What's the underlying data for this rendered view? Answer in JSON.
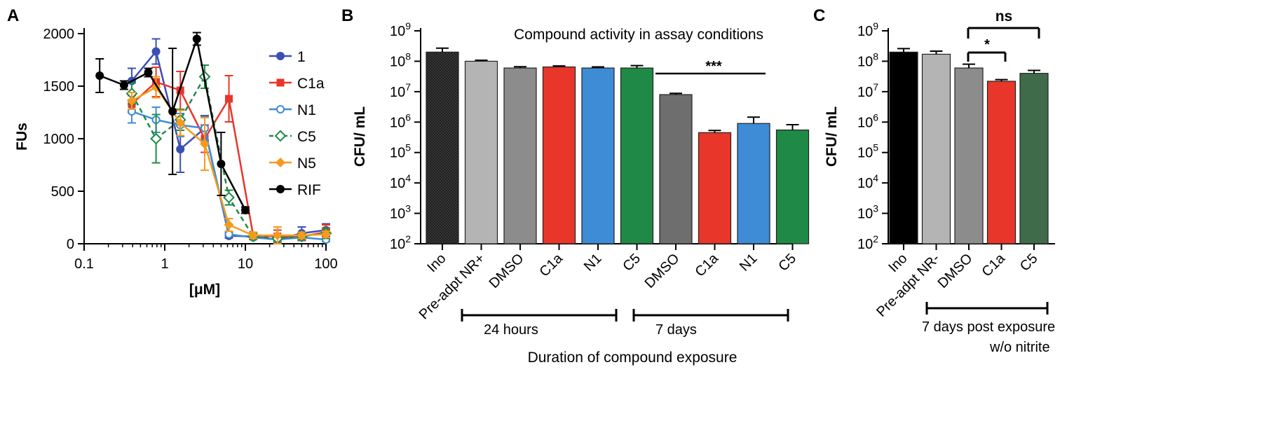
{
  "panels": {
    "a": {
      "label": "A",
      "ylabel": "FUs",
      "xlabel": "[μM]",
      "xticks": [
        "0.1",
        "1",
        "10",
        "100"
      ],
      "yticks": [
        "0",
        "500",
        "1000",
        "1500",
        "2000"
      ]
    },
    "b": {
      "label": "B",
      "ylabel": "CFU/ mL",
      "title": "Compound activity in assay conditions",
      "group1": "24 hours",
      "group2": "7 days",
      "xlabel": "Duration of compound exposure",
      "sig": "***"
    },
    "c": {
      "label": "C",
      "ylabel": "CFU/ mL",
      "group": "7 days post exposure",
      "group_sub": "w/o nitrite",
      "sig1": "*",
      "sig2": "ns"
    }
  },
  "colors": {
    "compound_1": "#3a4fb3",
    "C1a": "#e8362a",
    "N1": "#3e8bd6",
    "C5": "#1f8a47",
    "N5": "#f59a1e",
    "RIF": "#000000",
    "ino_hatched": "#3c3c3c",
    "pre_adapted": "#b4b4b4",
    "dmso_24h": "#8c8c8c",
    "dmso_7d": "#6e6e6e",
    "c5_panel_c": "#3f6b4b"
  },
  "chart_data": [
    {
      "type": "line",
      "panel": "A",
      "xlabel": "[μM]",
      "ylabel": "FUs",
      "xscale": "log",
      "xlim": [
        0.1,
        100
      ],
      "ylim": [
        0,
        2100
      ],
      "legend_position": "right",
      "series": [
        {
          "name": "1",
          "color": "#3a4fb3",
          "style": "solid",
          "marker": "circle-filled",
          "x": [
            0.39,
            0.78,
            1.56,
            3.13,
            6.25,
            12.5,
            25,
            50,
            100
          ],
          "y": [
            1550,
            1830,
            900,
            1100,
            75,
            70,
            40,
            100,
            130
          ],
          "err": [
            120,
            120,
            220,
            120,
            20,
            30,
            30,
            60,
            60
          ]
        },
        {
          "name": "C1a",
          "color": "#e8362a",
          "style": "solid",
          "marker": "square-filled",
          "x": [
            0.39,
            0.78,
            1.56,
            3.13,
            6.25,
            12.5,
            25,
            50,
            100
          ],
          "y": [
            1330,
            1540,
            1460,
            1000,
            1380,
            80,
            70,
            70,
            110
          ],
          "err": [
            80,
            140,
            180,
            130,
            220,
            30,
            60,
            40,
            70
          ]
        },
        {
          "name": "N1",
          "color": "#3e8bd6",
          "style": "solid",
          "marker": "circle-open",
          "x": [
            0.39,
            0.78,
            1.56,
            3.13,
            6.25,
            12.5,
            25,
            50,
            100
          ],
          "y": [
            1260,
            1180,
            1130,
            1100,
            90,
            60,
            40,
            60,
            40
          ],
          "err": [
            110,
            120,
            110,
            110,
            20,
            20,
            20,
            20,
            20
          ]
        },
        {
          "name": "C5",
          "color": "#1f8a47",
          "style": "dashed",
          "marker": "diamond-open",
          "x": [
            0.39,
            0.78,
            1.56,
            3.13,
            6.25,
            12.5,
            25,
            50,
            100
          ],
          "y": [
            1430,
            1000,
            1180,
            1590,
            440,
            70,
            50,
            70,
            100
          ],
          "err": [
            100,
            230,
            100,
            110,
            70,
            30,
            20,
            30,
            50
          ]
        },
        {
          "name": "N5",
          "color": "#f59a1e",
          "style": "solid",
          "marker": "diamond-filled",
          "x": [
            0.39,
            0.78,
            1.56,
            3.13,
            6.25,
            12.5,
            25,
            50,
            100
          ],
          "y": [
            1360,
            1490,
            1150,
            950,
            180,
            80,
            80,
            80,
            90
          ],
          "err": [
            80,
            100,
            120,
            250,
            60,
            30,
            80,
            30,
            30
          ]
        },
        {
          "name": "RIF",
          "color": "#000000",
          "style": "solid",
          "marker": "circle-filled",
          "x": [
            0.156,
            0.3125,
            0.625,
            1.25,
            2.5,
            5,
            10
          ],
          "y": [
            1600,
            1510,
            1630,
            1260,
            1950,
            760,
            320
          ],
          "err": [
            160,
            40,
            40,
            600,
            60,
            300,
            30
          ]
        }
      ]
    },
    {
      "type": "bar",
      "panel": "B",
      "title": "Compound activity in assay conditions",
      "ylabel": "CFU/ mL",
      "xlabel": "Duration of compound exposure",
      "yscale": "log",
      "ylim": [
        100,
        1000000000
      ],
      "categories": [
        "Ino",
        "Pre-adpt NR+",
        "DMSO",
        "C1a",
        "N1",
        "C5",
        "DMSO",
        "C1a",
        "N1",
        "C5"
      ],
      "values": [
        200000000,
        100000000,
        60000000,
        65000000,
        60000000,
        60000000,
        8000000,
        450000,
        900000,
        550000
      ],
      "errors_upper": [
        270000000,
        108000000,
        66000000,
        70000000,
        65000000,
        72000000,
        8800000,
        530000,
        1450000,
        820000
      ],
      "bar_colors": [
        "#3c3c3c",
        "#b4b4b4",
        "#8c8c8c",
        "#e8362a",
        "#3e8bd6",
        "#1f8a47",
        "#6e6e6e",
        "#e8362a",
        "#3e8bd6",
        "#1f8a47"
      ],
      "groups": [
        {
          "label": "24 hours",
          "from": 2,
          "to": 5
        },
        {
          "label": "7 days",
          "from": 6,
          "to": 9
        }
      ],
      "annotation": {
        "text": "***",
        "from": 6,
        "to": 9
      }
    },
    {
      "type": "bar",
      "panel": "C",
      "ylabel": "CFU/ mL",
      "yscale": "log",
      "ylim": [
        100,
        1000000000
      ],
      "categories": [
        "Ino",
        "Pre-adpt NR-",
        "DMSO",
        "C1a",
        "C5"
      ],
      "values": [
        200000000,
        170000000,
        60000000,
        22000000,
        40000000
      ],
      "errors_upper": [
        260000000,
        215000000,
        80000000,
        25000000,
        50000000
      ],
      "bar_colors": [
        "#000000",
        "#b4b4b4",
        "#8c8c8c",
        "#e8362a",
        "#3f6b4b"
      ],
      "groups": [
        {
          "label": "7 days post exposure",
          "from": 2,
          "to": 4
        }
      ],
      "annotations": [
        {
          "text": "*",
          "from": 2,
          "to": 3
        },
        {
          "text": "ns",
          "from": 2,
          "to": 4
        }
      ]
    }
  ]
}
